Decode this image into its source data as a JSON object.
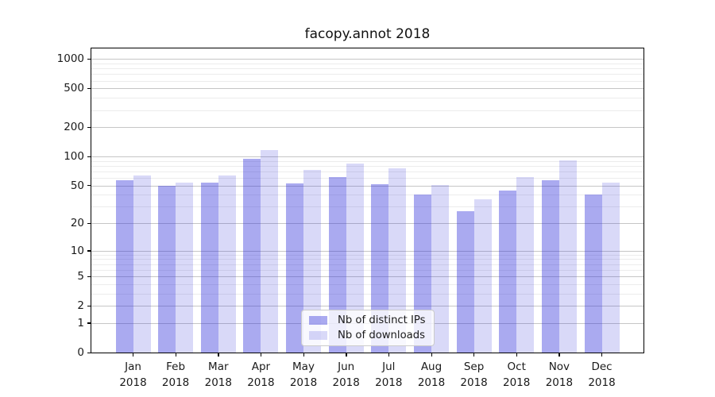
{
  "figure_title": "facopy.annot 2018",
  "chart_data": {
    "type": "bar",
    "title": "facopy.annot 2018",
    "xlabel": "",
    "ylabel": "",
    "y_scale": "log1p",
    "grid": "on",
    "legend_position": "bottom-center-inside",
    "categories": [
      {
        "month": "Jan",
        "year": "2018"
      },
      {
        "month": "Feb",
        "year": "2018"
      },
      {
        "month": "Mar",
        "year": "2018"
      },
      {
        "month": "Apr",
        "year": "2018"
      },
      {
        "month": "May",
        "year": "2018"
      },
      {
        "month": "Jun",
        "year": "2018"
      },
      {
        "month": "Jul",
        "year": "2018"
      },
      {
        "month": "Aug",
        "year": "2018"
      },
      {
        "month": "Sep",
        "year": "2018"
      },
      {
        "month": "Oct",
        "year": "2018"
      },
      {
        "month": "Nov",
        "year": "2018"
      },
      {
        "month": "Dec",
        "year": "2018"
      }
    ],
    "series": [
      {
        "name": "Nb of distinct IPs",
        "color": "rgba(43,43,218,0.40)",
        "values": [
          57,
          50,
          54,
          95,
          53,
          61,
          52,
          40,
          27,
          44,
          57,
          40
        ]
      },
      {
        "name": "Nb of downloads",
        "color": "rgba(43,43,218,0.18)",
        "values": [
          64,
          54,
          63,
          116,
          73,
          84,
          75,
          51,
          36,
          61,
          91,
          54
        ]
      }
    ],
    "y_ticks_major": [
      0,
      1,
      2,
      5,
      10,
      20,
      50,
      100,
      200,
      500,
      1000
    ],
    "y_ticks_minor": [
      3,
      4,
      6,
      7,
      8,
      9,
      30,
      40,
      60,
      70,
      80,
      90,
      300,
      400,
      600,
      700,
      800,
      900
    ],
    "ylim": [
      0,
      1280
    ]
  }
}
